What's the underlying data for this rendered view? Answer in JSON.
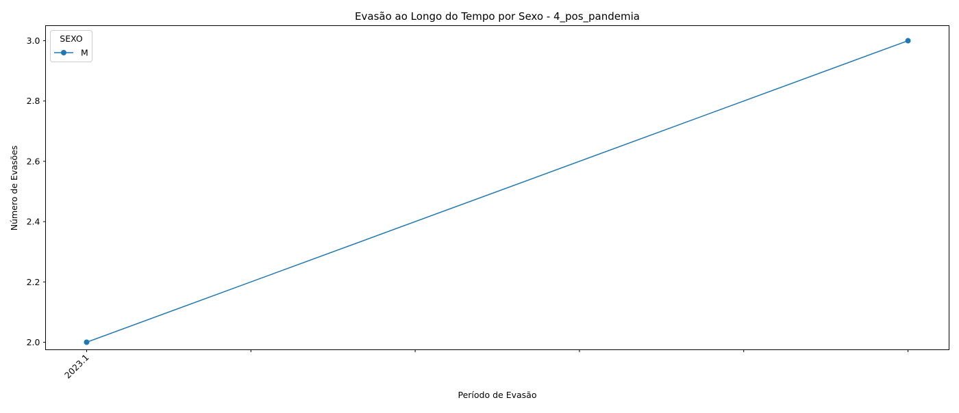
{
  "chart_data": {
    "type": "line",
    "title": "Evasão ao Longo do Tempo por Sexo - 4_pos_pandemia",
    "xlabel": "Período de Evasão",
    "ylabel": "Número de Evasões",
    "x_tick_labels": [
      "2023.1",
      "",
      "",
      "",
      "",
      ""
    ],
    "y_ticks": [
      "2.0",
      "2.2",
      "2.4",
      "2.6",
      "2.8",
      "3.0"
    ],
    "ylim": [
      1.975,
      3.05
    ],
    "xlim": [
      -0.25,
      5.25
    ],
    "grid": false,
    "legend": {
      "title": "SEXO",
      "placement": "top-left"
    },
    "series": [
      {
        "name": "M",
        "color": "#1f77b4",
        "marker": "circle",
        "points": [
          {
            "x": 0,
            "y": 2
          },
          {
            "x": 5,
            "y": 3
          }
        ]
      }
    ]
  }
}
